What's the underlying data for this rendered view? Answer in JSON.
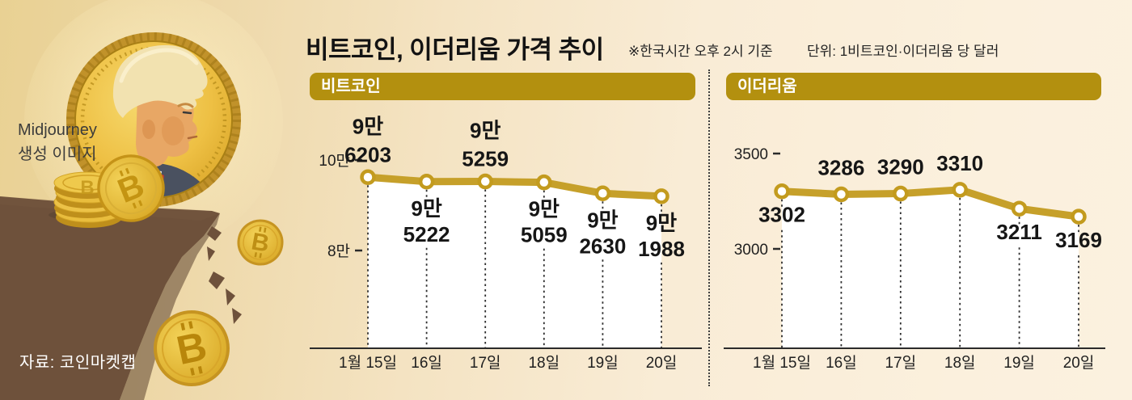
{
  "header": {
    "title": "비트코인, 이더리움 가격 추이",
    "note_time": "※한국시간 오후 2시 기준",
    "note_unit": "단위: 1비트코인·이더리움 당 달러"
  },
  "illustration": {
    "caption": [
      "Midjourney",
      "생성 이미지"
    ],
    "source": "자료: 코인마켓캡",
    "coin_letter": "B"
  },
  "chart_data": [
    {
      "type": "line",
      "title": "비트코인",
      "x": [
        "1월 15일",
        "16일",
        "17일",
        "18일",
        "19일",
        "20일"
      ],
      "values": [
        96203,
        95222,
        95259,
        95059,
        92630,
        91988
      ],
      "value_labels": [
        [
          "9만",
          "6203"
        ],
        [
          "9만",
          "5222"
        ],
        [
          "9만",
          "5259"
        ],
        [
          "9만",
          "5059"
        ],
        [
          "9만",
          "2630"
        ],
        [
          "9만",
          "1988"
        ]
      ],
      "label_side": [
        "above",
        "below",
        "above",
        "below",
        "below",
        "below"
      ],
      "y_axis": [
        {
          "label": "10만",
          "value": 100000
        },
        {
          "label": "8만",
          "value": 80000
        }
      ],
      "grid": false,
      "legend": "none"
    },
    {
      "type": "line",
      "title": "이더리움",
      "x": [
        "1월 15일",
        "16일",
        "17일",
        "18일",
        "19일",
        "20일"
      ],
      "values": [
        3302,
        3286,
        3290,
        3310,
        3211,
        3169
      ],
      "value_labels": [
        [
          "3302"
        ],
        [
          "3286"
        ],
        [
          "3290"
        ],
        [
          "3310"
        ],
        [
          "3211"
        ],
        [
          "3169"
        ]
      ],
      "label_side": [
        "below",
        "above",
        "above",
        "above",
        "below",
        "below"
      ],
      "y_axis": [
        {
          "label": "3500",
          "value": 3500
        },
        {
          "label": "3000",
          "value": 3000
        }
      ],
      "grid": false,
      "legend": "none"
    }
  ],
  "colors": {
    "accent_gold": "#b3900f",
    "line_gold": "#c6a02a",
    "marker_ring": "#c39b1e",
    "under_fill": "#ffffff",
    "background_left": "#e9d193",
    "background_right": "#fbf0dd",
    "cliff_brown": "#6e513b",
    "axis_dark": "#2b2b2b",
    "text_dark": "#1a1a1a"
  }
}
